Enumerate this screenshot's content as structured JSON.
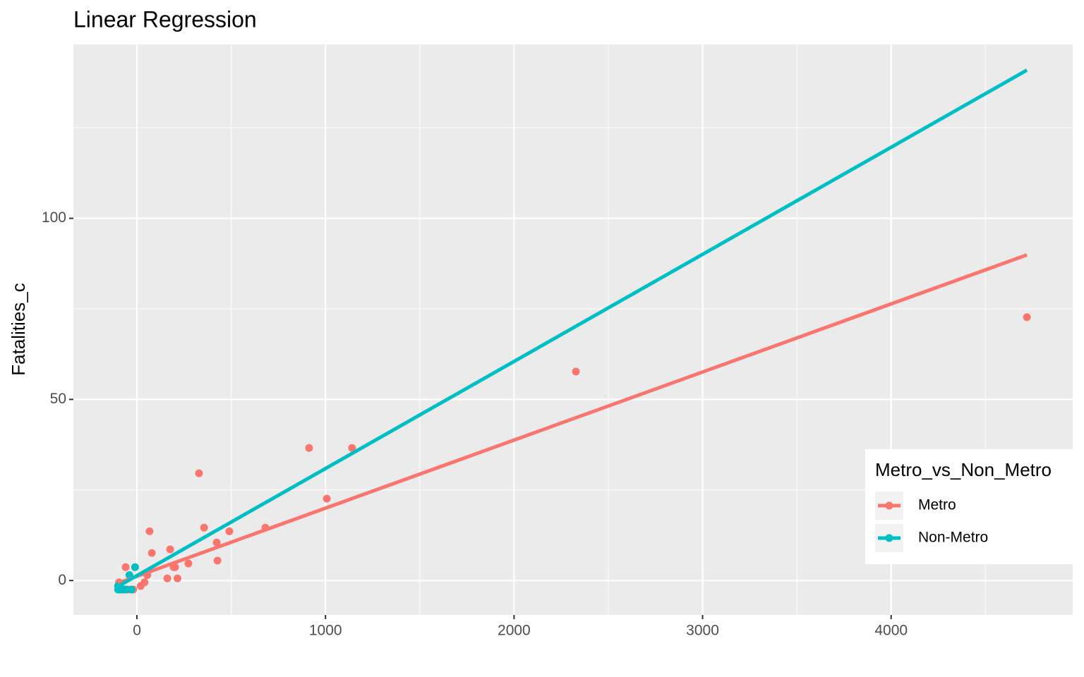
{
  "chart_data": {
    "type": "scatter",
    "title": "Linear Regression",
    "y_label": "Fatalities_c",
    "legend_title": "Metro_vs_Non_Metro",
    "legend_position": "right",
    "xlim": [
      -337,
      4963
    ],
    "ylim": [
      -9.5,
      148
    ],
    "xticks": [
      0,
      1000,
      2000,
      3000,
      4000
    ],
    "yticks": [
      0,
      50,
      100
    ],
    "grid": true,
    "series": [
      {
        "name": "Metro",
        "color": "#f8766d",
        "x": [
          4720,
          2328,
          913,
          1141,
          329,
          1007,
          356,
          490,
          681,
          67,
          79,
          176,
          423,
          427,
          273,
          195,
          202,
          161,
          215,
          -60,
          55,
          40,
          20,
          -95,
          -70,
          -50,
          -20,
          -90
        ],
        "y": [
          72.7,
          57.7,
          36.6,
          36.6,
          29.6,
          22.6,
          14.6,
          13.6,
          14.6,
          13.6,
          7.6,
          8.6,
          10.5,
          5.5,
          4.7,
          3.7,
          3.7,
          0.6,
          0.6,
          3.7,
          1.5,
          -0.5,
          -1.5,
          -0.5,
          -2.5,
          -2.5,
          -2.5,
          -2.5
        ],
        "fit_x": [
          -100,
          4720
        ],
        "fit_y": [
          -0.7,
          89.9
        ]
      },
      {
        "name": "Non-Metro",
        "color": "#00bfc4",
        "x": [
          -10,
          -40,
          -100,
          -95,
          -80,
          -60,
          -30,
          -90,
          -100
        ],
        "y": [
          3.7,
          1.5,
          -2.5,
          -2.5,
          -2.5,
          -2.5,
          -2.5,
          -1.5,
          -1.5
        ],
        "fit_x": [
          -100,
          4720
        ],
        "fit_y": [
          -1.6,
          140.9
        ]
      }
    ]
  }
}
